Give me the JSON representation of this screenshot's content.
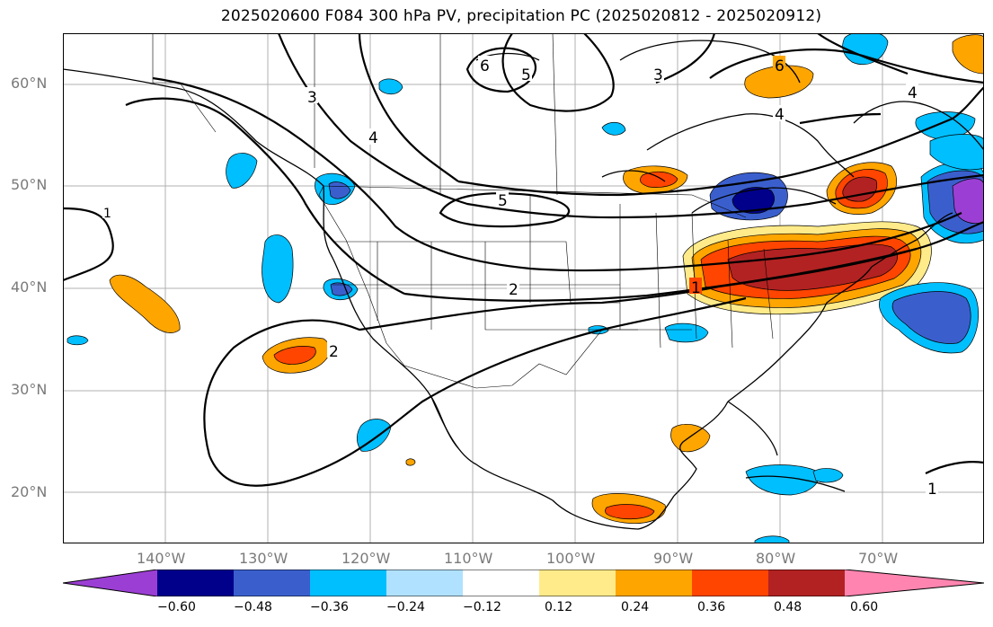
{
  "title": "2025020600 F084 300 hPa PV, precipitation PC (2025020812 - 2025020912)",
  "lat_labels": [
    "60°N",
    "50°N",
    "40°N",
    "30°N",
    "20°N"
  ],
  "lon_labels": [
    "140°W",
    "130°W",
    "120°W",
    "110°W",
    "100°W",
    "90°W",
    "80°W",
    "70°W"
  ],
  "colorbar": {
    "tick_labels": [
      "−0.60",
      "−0.48",
      "−0.36",
      "−0.24",
      "−0.12",
      "0.12",
      "0.24",
      "0.36",
      "0.48",
      "0.60"
    ],
    "colors": [
      "#9b3fd4",
      "#00008b",
      "#3a5fcd",
      "#00bfff",
      "#b0e2ff",
      "#ffffff",
      "#ffeb8a",
      "#ffa500",
      "#ff4500",
      "#b22222",
      "#ff85b0"
    ]
  },
  "contour_labels": [
    "1",
    "2",
    "2",
    "3",
    "3",
    "4",
    "4",
    "4",
    "5",
    "5",
    "6",
    "6",
    "1",
    "1"
  ]
}
